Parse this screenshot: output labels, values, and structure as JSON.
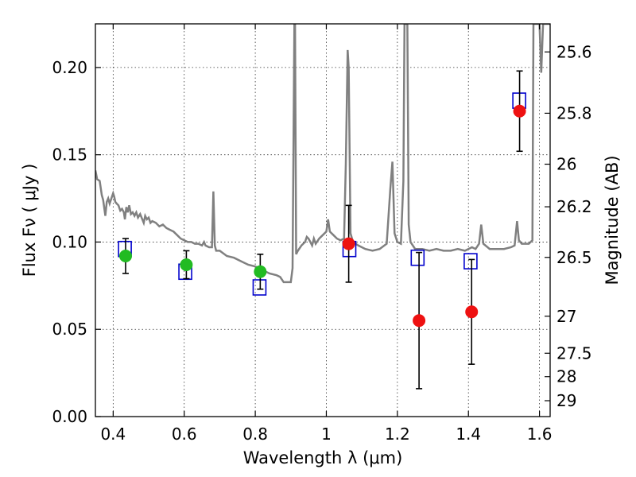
{
  "chart_data": {
    "type": "scatter",
    "xlabel": "Wavelength  λ (μm)",
    "ylabel": "Flux  Fν  ( μJy )",
    "y2label": "Magnitude (AB)",
    "xlim": [
      0.35,
      1.63
    ],
    "ylim": [
      0.0,
      0.225
    ],
    "grid": true,
    "xticks": [
      0.4,
      0.6,
      0.8,
      1.0,
      1.2,
      1.4,
      1.6
    ],
    "xtick_labels": [
      "0.4",
      "0.6",
      "0.8",
      "1",
      "1.2",
      "1.4",
      "1.6"
    ],
    "yticks": [
      0.0,
      0.05,
      0.1,
      0.15,
      0.2
    ],
    "ytick_labels": [
      "0.00",
      "0.05",
      "0.10",
      "0.15",
      "0.20"
    ],
    "mag_ticks": [
      {
        "flux": 0.2089,
        "label": "25.6"
      },
      {
        "flux": 0.1738,
        "label": "25.8"
      },
      {
        "flux": 0.1446,
        "label": "26"
      },
      {
        "flux": 0.1202,
        "label": "26.2"
      },
      {
        "flux": 0.0912,
        "label": "26.5"
      },
      {
        "flux": 0.0575,
        "label": "27"
      },
      {
        "flux": 0.0363,
        "label": "27.5"
      },
      {
        "flux": 0.0229,
        "label": "28"
      },
      {
        "flux": 0.0091,
        "label": "29"
      }
    ],
    "series": [
      {
        "kind": "detections-optical",
        "color": "#22bb22",
        "points": [
          {
            "x": 0.435,
            "y": 0.092,
            "err": 0.01
          },
          {
            "x": 0.606,
            "y": 0.087,
            "err": 0.008
          },
          {
            "x": 0.814,
            "y": 0.083,
            "err": 0.01
          }
        ]
      },
      {
        "kind": "detections-nir",
        "color": "#ee1111",
        "points": [
          {
            "x": 1.063,
            "y": 0.099,
            "err": 0.022
          },
          {
            "x": 1.261,
            "y": 0.055,
            "err": 0.039
          },
          {
            "x": 1.409,
            "y": 0.06,
            "err": 0.03
          },
          {
            "x": 1.544,
            "y": 0.175,
            "err": 0.023
          }
        ]
      },
      {
        "kind": "model-photometry",
        "color": "#0000cc",
        "points": [
          {
            "x": 0.433,
            "y": 0.096
          },
          {
            "x": 0.603,
            "y": 0.083
          },
          {
            "x": 0.812,
            "y": 0.074
          },
          {
            "x": 1.065,
            "y": 0.096
          },
          {
            "x": 1.257,
            "y": 0.091
          },
          {
            "x": 1.406,
            "y": 0.089
          },
          {
            "x": 1.543,
            "y": 0.181
          }
        ]
      }
    ],
    "model_spectrum": {
      "color": "#808080",
      "points": [
        [
          0.35,
          0.141
        ],
        [
          0.355,
          0.136
        ],
        [
          0.362,
          0.135
        ],
        [
          0.368,
          0.127
        ],
        [
          0.372,
          0.124
        ],
        [
          0.378,
          0.115
        ],
        [
          0.382,
          0.123
        ],
        [
          0.386,
          0.125
        ],
        [
          0.39,
          0.122
        ],
        [
          0.395,
          0.125
        ],
        [
          0.4,
          0.128
        ],
        [
          0.403,
          0.126
        ],
        [
          0.406,
          0.123
        ],
        [
          0.41,
          0.122
        ],
        [
          0.415,
          0.121
        ],
        [
          0.42,
          0.118
        ],
        [
          0.425,
          0.119
        ],
        [
          0.43,
          0.117
        ],
        [
          0.433,
          0.113
        ],
        [
          0.437,
          0.12
        ],
        [
          0.441,
          0.117
        ],
        [
          0.445,
          0.121
        ],
        [
          0.45,
          0.116
        ],
        [
          0.455,
          0.117
        ],
        [
          0.46,
          0.115
        ],
        [
          0.465,
          0.117
        ],
        [
          0.47,
          0.114
        ],
        [
          0.476,
          0.116
        ],
        [
          0.48,
          0.114
        ],
        [
          0.486,
          0.111
        ],
        [
          0.49,
          0.115
        ],
        [
          0.495,
          0.113
        ],
        [
          0.5,
          0.114
        ],
        [
          0.505,
          0.111
        ],
        [
          0.51,
          0.112
        ],
        [
          0.52,
          0.111
        ],
        [
          0.53,
          0.109
        ],
        [
          0.54,
          0.11
        ],
        [
          0.55,
          0.108
        ],
        [
          0.56,
          0.107
        ],
        [
          0.57,
          0.106
        ],
        [
          0.58,
          0.104
        ],
        [
          0.59,
          0.102
        ],
        [
          0.6,
          0.101
        ],
        [
          0.61,
          0.1
        ],
        [
          0.62,
          0.1
        ],
        [
          0.63,
          0.099
        ],
        [
          0.64,
          0.099
        ],
        [
          0.65,
          0.098
        ],
        [
          0.656,
          0.1
        ],
        [
          0.66,
          0.098
        ],
        [
          0.67,
          0.097
        ],
        [
          0.678,
          0.097
        ],
        [
          0.682,
          0.129
        ],
        [
          0.686,
          0.098
        ],
        [
          0.69,
          0.095
        ],
        [
          0.7,
          0.095
        ],
        [
          0.72,
          0.092
        ],
        [
          0.74,
          0.091
        ],
        [
          0.76,
          0.089
        ],
        [
          0.78,
          0.087
        ],
        [
          0.8,
          0.086
        ],
        [
          0.82,
          0.084
        ],
        [
          0.84,
          0.082
        ],
        [
          0.86,
          0.081
        ],
        [
          0.87,
          0.08
        ],
        [
          0.88,
          0.077
        ],
        [
          0.89,
          0.077
        ],
        [
          0.9,
          0.077
        ],
        [
          0.905,
          0.085
        ],
        [
          0.91,
          0.225
        ],
        [
          0.912,
          0.225
        ],
        [
          0.915,
          0.093
        ],
        [
          0.92,
          0.095
        ],
        [
          0.93,
          0.098
        ],
        [
          0.935,
          0.099
        ],
        [
          0.94,
          0.1
        ],
        [
          0.945,
          0.103
        ],
        [
          0.95,
          0.102
        ],
        [
          0.955,
          0.1
        ],
        [
          0.96,
          0.098
        ],
        [
          0.965,
          0.102
        ],
        [
          0.97,
          0.099
        ],
        [
          0.98,
          0.102
        ],
        [
          0.99,
          0.104
        ],
        [
          1.0,
          0.106
        ],
        [
          1.005,
          0.113
        ],
        [
          1.01,
          0.106
        ],
        [
          1.02,
          0.104
        ],
        [
          1.03,
          0.102
        ],
        [
          1.04,
          0.101
        ],
        [
          1.05,
          0.102
        ],
        [
          1.055,
          0.145
        ],
        [
          1.06,
          0.21
        ],
        [
          1.063,
          0.2
        ],
        [
          1.068,
          0.105
        ],
        [
          1.075,
          0.1
        ],
        [
          1.09,
          0.098
        ],
        [
          1.11,
          0.096
        ],
        [
          1.13,
          0.095
        ],
        [
          1.15,
          0.096
        ],
        [
          1.17,
          0.099
        ],
        [
          1.18,
          0.13
        ],
        [
          1.186,
          0.146
        ],
        [
          1.192,
          0.105
        ],
        [
          1.2,
          0.1
        ],
        [
          1.21,
          0.099
        ],
        [
          1.217,
          0.135
        ],
        [
          1.22,
          0.225
        ],
        [
          1.228,
          0.225
        ],
        [
          1.232,
          0.11
        ],
        [
          1.237,
          0.1
        ],
        [
          1.25,
          0.096
        ],
        [
          1.27,
          0.096
        ],
        [
          1.29,
          0.095
        ],
        [
          1.31,
          0.096
        ],
        [
          1.33,
          0.095
        ],
        [
          1.35,
          0.095
        ],
        [
          1.37,
          0.096
        ],
        [
          1.39,
          0.095
        ],
        [
          1.41,
          0.097
        ],
        [
          1.42,
          0.096
        ],
        [
          1.43,
          0.099
        ],
        [
          1.436,
          0.11
        ],
        [
          1.442,
          0.099
        ],
        [
          1.46,
          0.096
        ],
        [
          1.48,
          0.096
        ],
        [
          1.5,
          0.096
        ],
        [
          1.52,
          0.097
        ],
        [
          1.53,
          0.098
        ],
        [
          1.537,
          0.112
        ],
        [
          1.542,
          0.101
        ],
        [
          1.55,
          0.099
        ],
        [
          1.57,
          0.099
        ],
        [
          1.58,
          0.101
        ],
        [
          1.583,
          0.225
        ],
        [
          1.595,
          0.225
        ],
        [
          1.6,
          0.225
        ],
        [
          1.605,
          0.197
        ],
        [
          1.61,
          0.225
        ],
        [
          1.63,
          0.225
        ]
      ]
    }
  }
}
